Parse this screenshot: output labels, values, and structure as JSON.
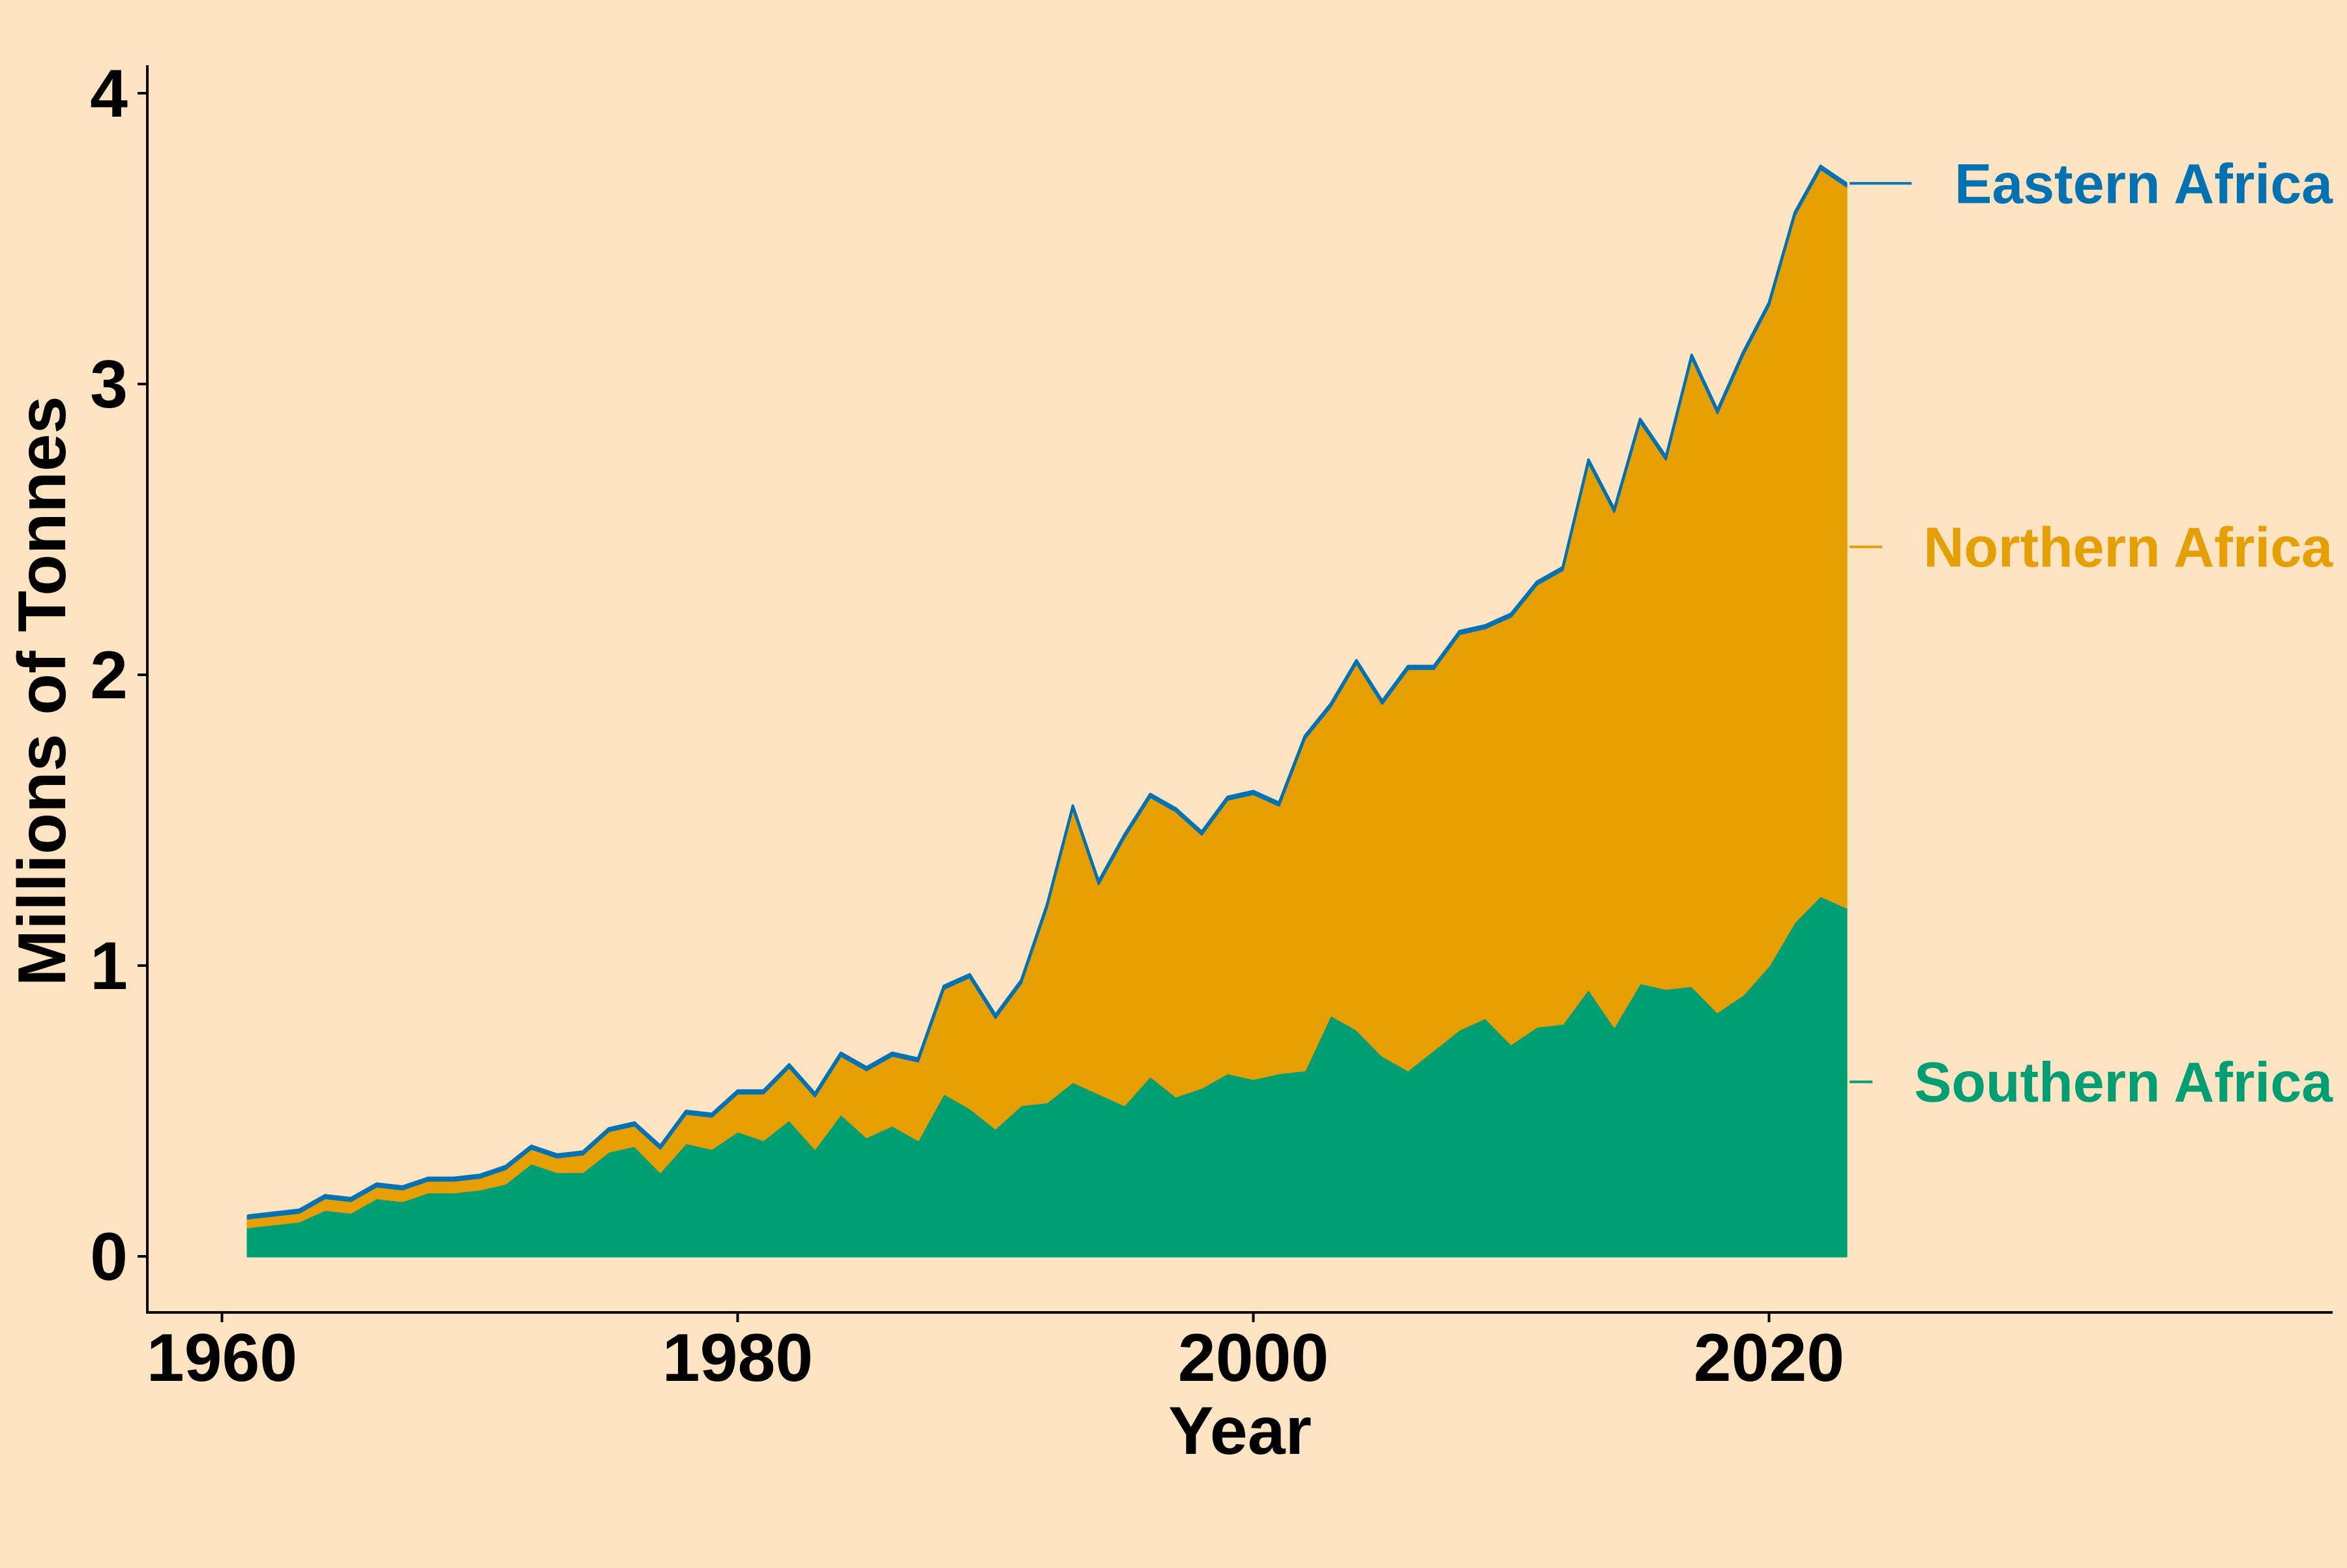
{
  "chart_data": {
    "type": "area",
    "stacked": true,
    "title": "",
    "xlabel": "Year",
    "ylabel": "Millions of Tonnes",
    "xlim": [
      1957,
      2040
    ],
    "ylim": [
      -0.19,
      4.1
    ],
    "xticks": [
      1960,
      1980,
      2000,
      2020
    ],
    "yticks": [
      0,
      1,
      2,
      3,
      4
    ],
    "grid": false,
    "legend": "direct labels at right end of series",
    "colors": {
      "background": "#FFE4C4",
      "Southern Africa": "#009E73",
      "Northern Africa": "#E69F00",
      "Eastern Africa": "#0072B2"
    },
    "x": [
      1961,
      1962,
      1963,
      1964,
      1965,
      1966,
      1967,
      1968,
      1969,
      1970,
      1971,
      1972,
      1973,
      1974,
      1975,
      1976,
      1977,
      1978,
      1979,
      1980,
      1981,
      1982,
      1983,
      1984,
      1985,
      1986,
      1987,
      1988,
      1989,
      1990,
      1991,
      1992,
      1993,
      1994,
      1995,
      1996,
      1997,
      1998,
      1999,
      2000,
      2001,
      2002,
      2003,
      2004,
      2005,
      2006,
      2007,
      2008,
      2009,
      2010,
      2011,
      2012,
      2013,
      2014,
      2015,
      2016,
      2017,
      2018,
      2019,
      2020,
      2021,
      2022,
      2023
    ],
    "series": [
      {
        "name": "Southern Africa",
        "values": [
          0.1,
          0.11,
          0.12,
          0.16,
          0.15,
          0.2,
          0.19,
          0.22,
          0.22,
          0.23,
          0.25,
          0.32,
          0.29,
          0.29,
          0.36,
          0.38,
          0.29,
          0.39,
          0.37,
          0.43,
          0.4,
          0.47,
          0.37,
          0.49,
          0.41,
          0.45,
          0.4,
          0.56,
          0.51,
          0.44,
          0.52,
          0.53,
          0.6,
          0.56,
          0.52,
          0.62,
          0.55,
          0.58,
          0.63,
          0.61,
          0.63,
          0.64,
          0.83,
          0.78,
          0.69,
          0.64,
          0.71,
          0.78,
          0.82,
          0.73,
          0.79,
          0.8,
          0.92,
          0.79,
          0.94,
          0.92,
          0.93,
          0.84,
          0.9,
          1.0,
          1.15,
          1.24,
          1.2
        ]
      },
      {
        "name": "Northern Africa",
        "values": [
          0.03,
          0.03,
          0.03,
          0.04,
          0.04,
          0.04,
          0.04,
          0.04,
          0.04,
          0.04,
          0.05,
          0.05,
          0.05,
          0.06,
          0.07,
          0.07,
          0.08,
          0.1,
          0.11,
          0.13,
          0.16,
          0.18,
          0.18,
          0.2,
          0.23,
          0.24,
          0.27,
          0.36,
          0.45,
          0.38,
          0.42,
          0.67,
          0.94,
          0.72,
          0.92,
          0.96,
          0.98,
          0.87,
          0.94,
          0.98,
          0.92,
          1.14,
          1.06,
          1.26,
          1.21,
          1.38,
          1.31,
          1.36,
          1.34,
          1.47,
          1.52,
          1.56,
          1.81,
          1.77,
          1.93,
          1.82,
          2.16,
          2.06,
          2.2,
          2.27,
          2.43,
          2.5,
          2.48
        ]
      },
      {
        "name": "Eastern Africa",
        "values": [
          0.01,
          0.01,
          0.01,
          0.01,
          0.01,
          0.01,
          0.01,
          0.01,
          0.01,
          0.01,
          0.01,
          0.01,
          0.01,
          0.01,
          0.01,
          0.01,
          0.01,
          0.01,
          0.01,
          0.01,
          0.01,
          0.01,
          0.01,
          0.01,
          0.01,
          0.01,
          0.01,
          0.01,
          0.01,
          0.01,
          0.01,
          0.01,
          0.01,
          0.01,
          0.01,
          0.01,
          0.01,
          0.01,
          0.01,
          0.01,
          0.01,
          0.01,
          0.01,
          0.01,
          0.01,
          0.01,
          0.01,
          0.01,
          0.01,
          0.01,
          0.01,
          0.01,
          0.01,
          0.01,
          0.01,
          0.01,
          0.01,
          0.01,
          0.01,
          0.01,
          0.01,
          0.01,
          0.01
        ]
      }
    ],
    "series_labels": [
      "Eastern Africa",
      "Northern Africa",
      "Southern Africa"
    ]
  }
}
